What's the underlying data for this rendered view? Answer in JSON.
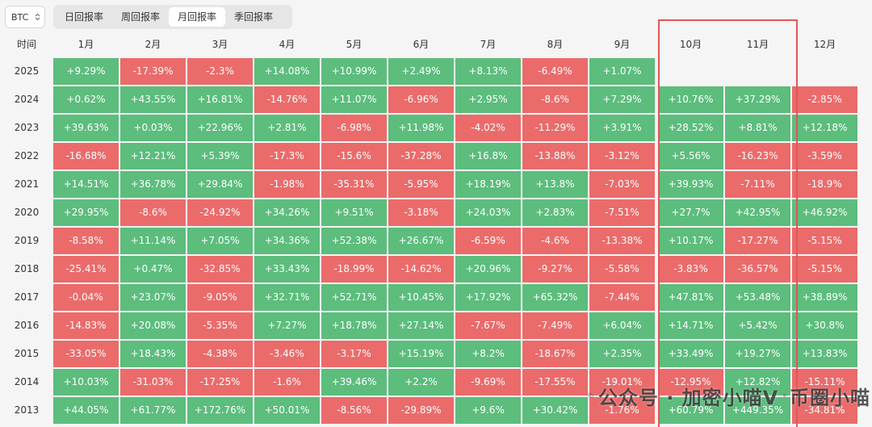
{
  "coin_selector": {
    "value": "BTC"
  },
  "tabs": [
    {
      "label": "日回报率",
      "active": false
    },
    {
      "label": "周回报率",
      "active": false
    },
    {
      "label": "月回报率",
      "active": true
    },
    {
      "label": "季回报率",
      "active": false
    }
  ],
  "table": {
    "year_header": "时间",
    "months": [
      "1月",
      "2月",
      "3月",
      "4月",
      "5月",
      "6月",
      "7月",
      "8月",
      "9月",
      "10月",
      "11月",
      "12月"
    ],
    "rows": [
      {
        "year": "2025",
        "values": [
          "+9.29%",
          "-17.39%",
          "-2.3%",
          "+14.08%",
          "+10.99%",
          "+2.49%",
          "+8.13%",
          "-6.49%",
          "+1.07%",
          "",
          "",
          ""
        ]
      },
      {
        "year": "2024",
        "values": [
          "+0.62%",
          "+43.55%",
          "+16.81%",
          "-14.76%",
          "+11.07%",
          "-6.96%",
          "+2.95%",
          "-8.6%",
          "+7.29%",
          "+10.76%",
          "+37.29%",
          "-2.85%"
        ]
      },
      {
        "year": "2023",
        "values": [
          "+39.63%",
          "+0.03%",
          "+22.96%",
          "+2.81%",
          "-6.98%",
          "+11.98%",
          "-4.02%",
          "-11.29%",
          "+3.91%",
          "+28.52%",
          "+8.81%",
          "+12.18%"
        ]
      },
      {
        "year": "2022",
        "values": [
          "-16.68%",
          "+12.21%",
          "+5.39%",
          "-17.3%",
          "-15.6%",
          "-37.28%",
          "+16.8%",
          "-13.88%",
          "-3.12%",
          "+5.56%",
          "-16.23%",
          "-3.59%"
        ]
      },
      {
        "year": "2021",
        "values": [
          "+14.51%",
          "+36.78%",
          "+29.84%",
          "-1.98%",
          "-35.31%",
          "-5.95%",
          "+18.19%",
          "+13.8%",
          "-7.03%",
          "+39.93%",
          "-7.11%",
          "-18.9%"
        ]
      },
      {
        "year": "2020",
        "values": [
          "+29.95%",
          "-8.6%",
          "-24.92%",
          "+34.26%",
          "+9.51%",
          "-3.18%",
          "+24.03%",
          "+2.83%",
          "-7.51%",
          "+27.7%",
          "+42.95%",
          "+46.92%"
        ]
      },
      {
        "year": "2019",
        "values": [
          "-8.58%",
          "+11.14%",
          "+7.05%",
          "+34.36%",
          "+52.38%",
          "+26.67%",
          "-6.59%",
          "-4.6%",
          "-13.38%",
          "+10.17%",
          "-17.27%",
          "-5.15%"
        ]
      },
      {
        "year": "2018",
        "values": [
          "-25.41%",
          "+0.47%",
          "-32.85%",
          "+33.43%",
          "-18.99%",
          "-14.62%",
          "+20.96%",
          "-9.27%",
          "-5.58%",
          "-3.83%",
          "-36.57%",
          "-5.15%"
        ]
      },
      {
        "year": "2017",
        "values": [
          "-0.04%",
          "+23.07%",
          "-9.05%",
          "+32.71%",
          "+52.71%",
          "+10.45%",
          "+17.92%",
          "+65.32%",
          "-7.44%",
          "+47.81%",
          "+53.48%",
          "+38.89%"
        ]
      },
      {
        "year": "2016",
        "values": [
          "-14.83%",
          "+20.08%",
          "-5.35%",
          "+7.27%",
          "+18.78%",
          "+27.14%",
          "-7.67%",
          "-7.49%",
          "+6.04%",
          "+14.71%",
          "+5.42%",
          "+30.8%"
        ]
      },
      {
        "year": "2015",
        "values": [
          "-33.05%",
          "+18.43%",
          "-4.38%",
          "-3.46%",
          "-3.17%",
          "+15.19%",
          "+8.2%",
          "-18.67%",
          "+2.35%",
          "+33.49%",
          "+19.27%",
          "+13.83%"
        ]
      },
      {
        "year": "2014",
        "values": [
          "+10.03%",
          "-31.03%",
          "-17.25%",
          "-1.6%",
          "+39.46%",
          "+2.2%",
          "-9.69%",
          "-17.55%",
          "-19.01%",
          "-12.95%",
          "+12.82%",
          "-15.11%"
        ]
      },
      {
        "year": "2013",
        "values": [
          "+44.05%",
          "+61.77%",
          "+172.76%",
          "+50.01%",
          "-8.56%",
          "-29.89%",
          "+9.6%",
          "+30.42%",
          "-1.76%",
          "+60.79%",
          "+449.35%",
          "-34.81%"
        ]
      }
    ]
  },
  "colors": {
    "positive": "#5cbd7d",
    "negative": "#eb6b6b",
    "highlight": "#e25656"
  },
  "watermark": {
    "part1": "公众号 · 加密小喵V",
    "part2": "币圈小喵"
  }
}
